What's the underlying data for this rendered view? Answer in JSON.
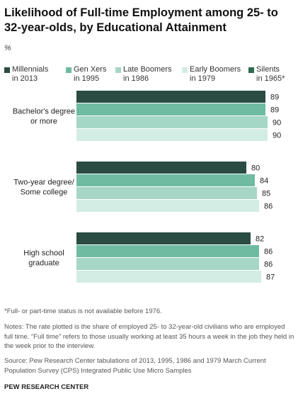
{
  "title": "Likelihood of Full-time Employment among 25- to 32-year-olds, by Educational Attainment",
  "unit_label": "%",
  "colors": {
    "millennials": "#2a4c42",
    "genx": "#6fbba1",
    "late_boomers": "#a6d6c6",
    "early_boomers": "#d3ece4",
    "silents": "#2e6b4f"
  },
  "legend": [
    {
      "label": "Millennials\nin 2013",
      "color": "#2a4c42"
    },
    {
      "label": "Gen Xers\nin 1995",
      "color": "#6fbba1"
    },
    {
      "label": "Late Boomers\nin 1986",
      "color": "#a6d6c6"
    },
    {
      "label": "Early Boomers\nin 1979",
      "color": "#d3ece4"
    },
    {
      "label": "Silents\nin 1965*",
      "color": "#2e6b4f"
    }
  ],
  "chart_data": {
    "type": "bar",
    "orientation": "horizontal",
    "categories": [
      "Bachelor's degree or more",
      "Two-year degree/ Some college",
      "High school graduate"
    ],
    "category_lines": [
      [
        "Bachelor's degree",
        "or more"
      ],
      [
        "Two-year degree/",
        "Some college"
      ],
      [
        "High school",
        "graduate"
      ]
    ],
    "series": [
      {
        "name": "Millennials in 2013",
        "values": [
          89,
          80,
          82
        ]
      },
      {
        "name": "Gen Xers in 1995",
        "values": [
          89,
          84,
          86
        ]
      },
      {
        "name": "Late Boomers in 1986",
        "values": [
          90,
          85,
          86
        ]
      },
      {
        "name": "Early Boomers in 1979",
        "values": [
          90,
          86,
          87
        ]
      }
    ],
    "xlim": [
      0,
      100
    ],
    "value_labels": true
  },
  "footnotes": {
    "asterisk": "*Full- or part-time status is not available before 1976.",
    "notes": "Notes: The rate plotted is the share of employed 25- to 32-year-old civilians who are employed full time. “Full time” refers to those usually working at least 35 hours a week in the job they held in the week prior to the interview.",
    "source": "Source: Pew Research Center tabulations of 2013, 1995, 1986 and 1979 March Current Population Survey (CPS) Integrated Public Use Micro Samples",
    "brand": "PEW RESEARCH CENTER"
  }
}
